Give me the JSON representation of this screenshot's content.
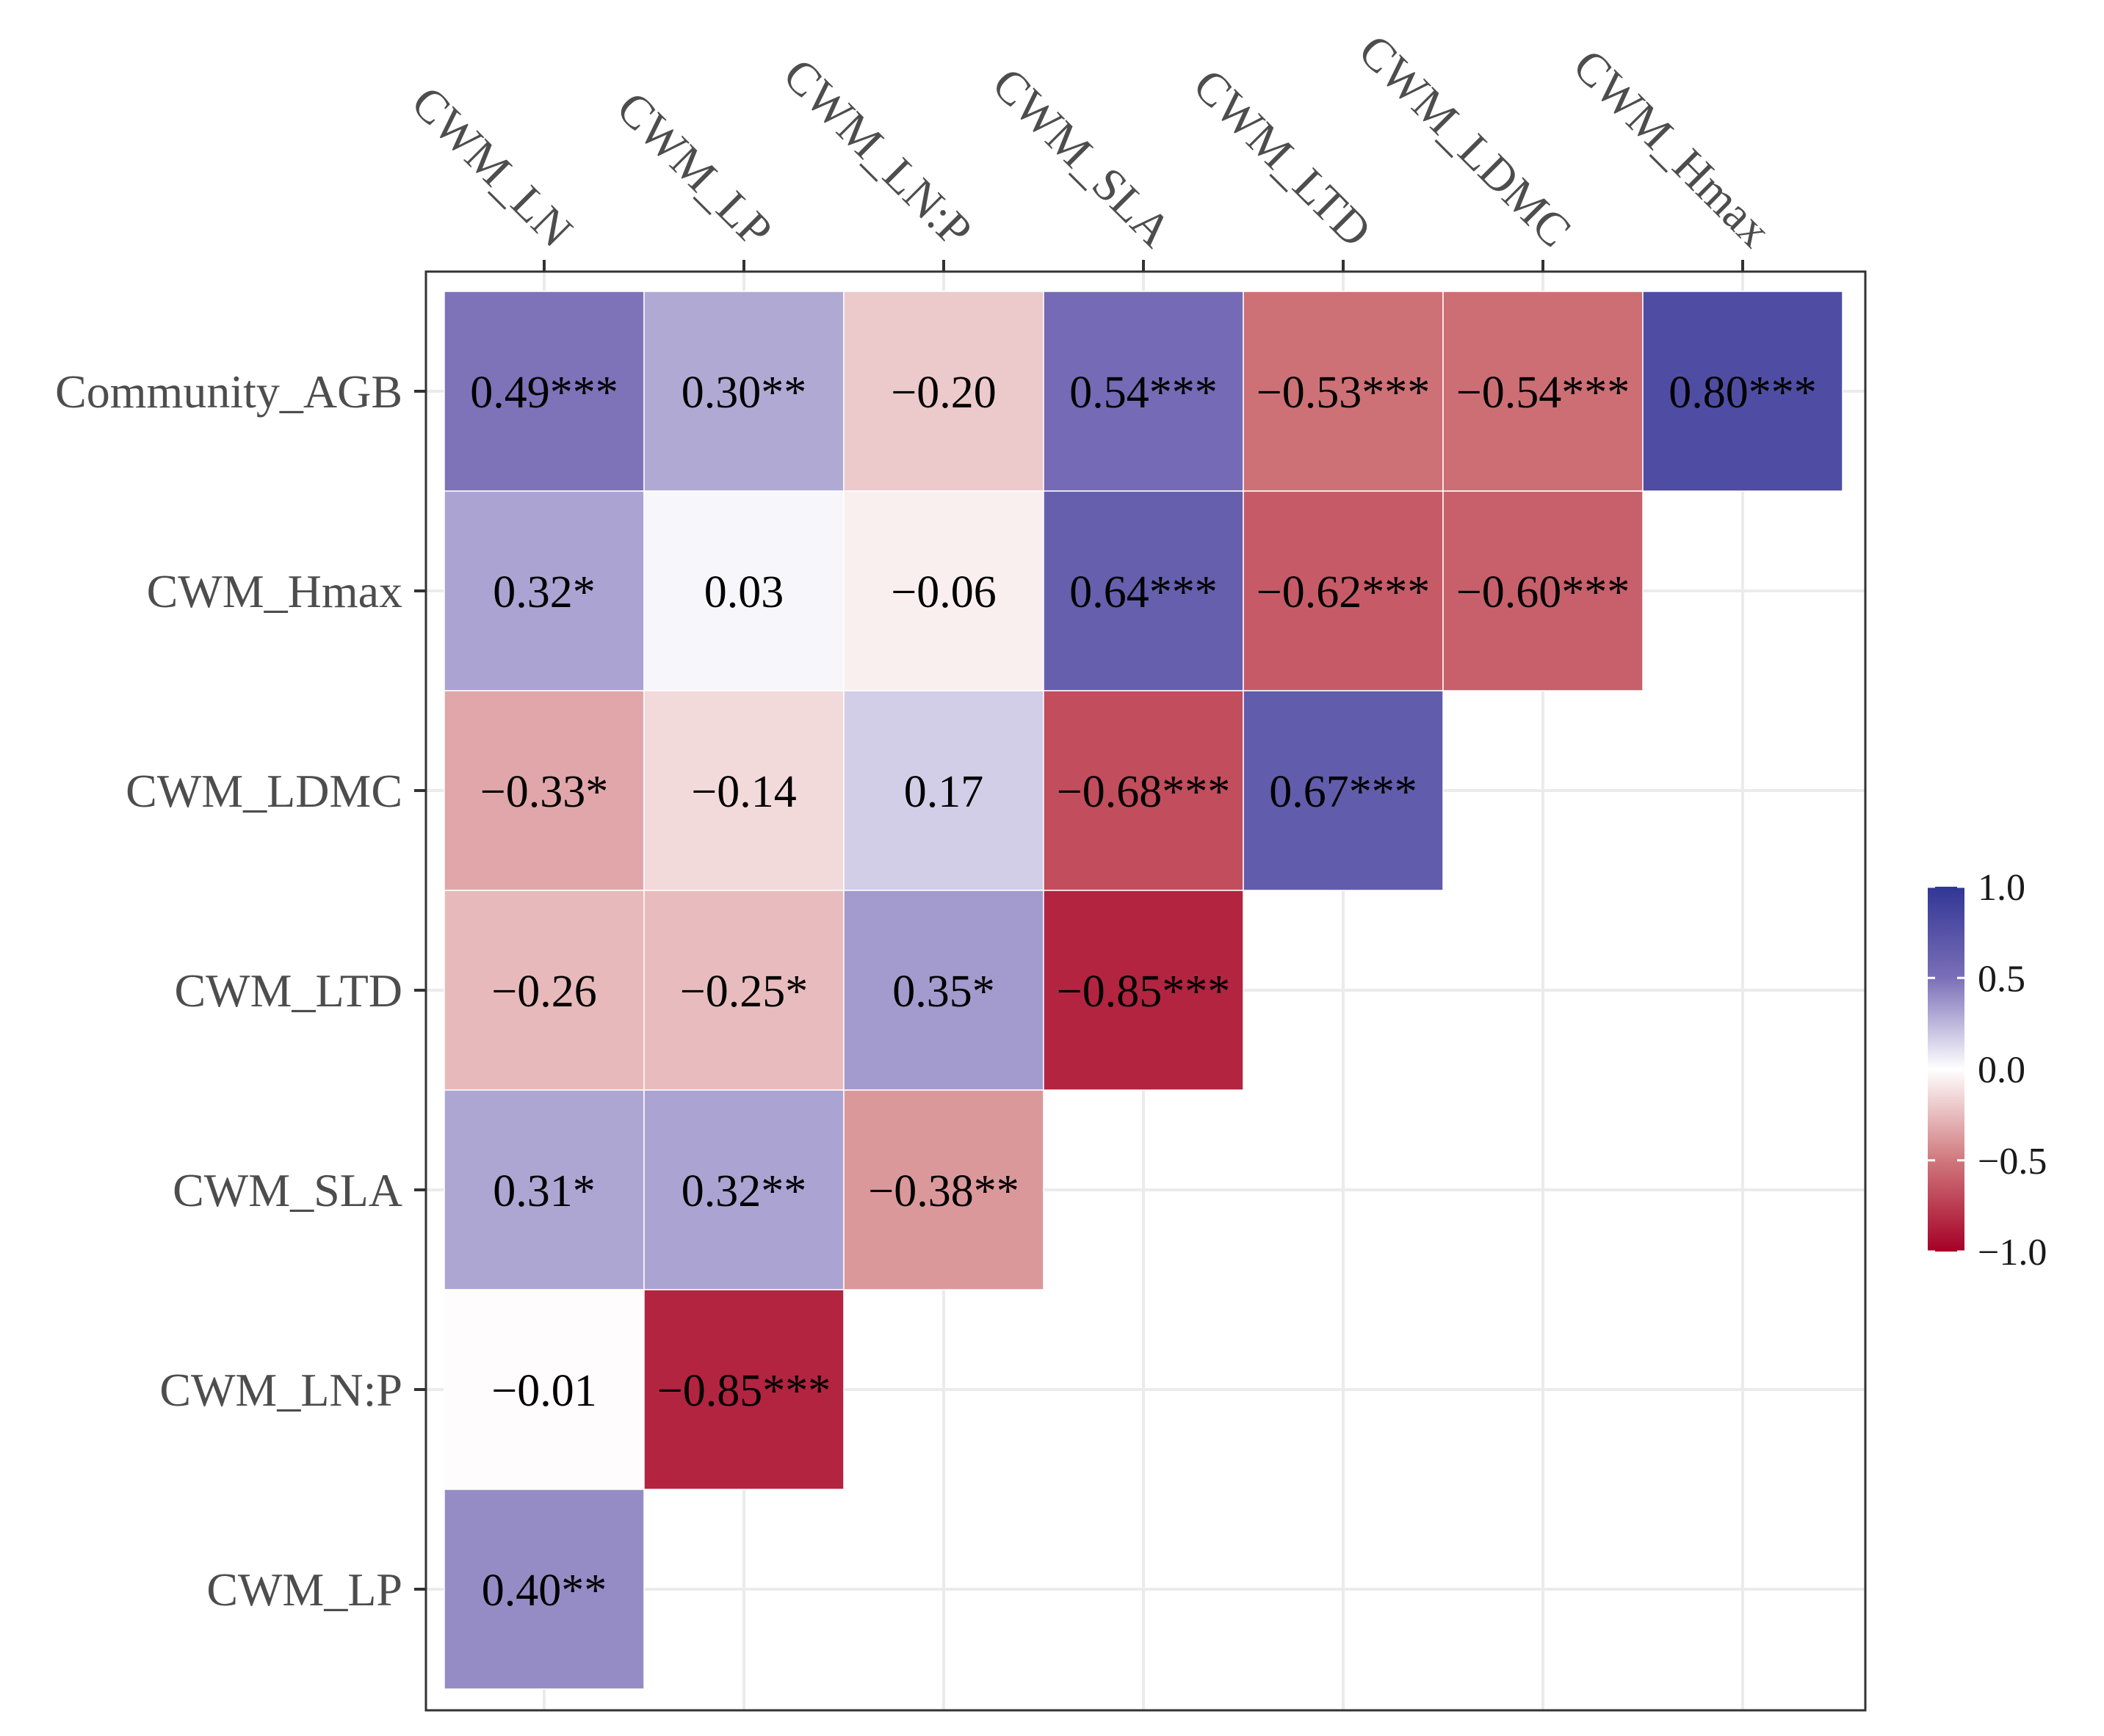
{
  "chart_data": {
    "type": "heatmap",
    "title": "",
    "x_labels": [
      "CWM_LN",
      "CWM_LP",
      "CWM_LN:P",
      "CWM_SLA",
      "CWM_LTD",
      "CWM_LDMC",
      "CWM_Hmax"
    ],
    "y_labels": [
      "Community_AGB",
      "CWM_Hmax",
      "CWM_LDMC",
      "CWM_LTD",
      "CWM_SLA",
      "CWM_LN:P",
      "CWM_LP"
    ],
    "cells": [
      [
        {
          "value": 0.49,
          "label": "0.49***"
        },
        {
          "value": 0.3,
          "label": "0.30**"
        },
        {
          "value": -0.2,
          "label": "−0.20"
        },
        {
          "value": 0.54,
          "label": "0.54***"
        },
        {
          "value": -0.53,
          "label": "−0.53***"
        },
        {
          "value": -0.54,
          "label": "−0.54***"
        },
        {
          "value": 0.8,
          "label": "0.80***"
        }
      ],
      [
        {
          "value": 0.32,
          "label": "0.32*"
        },
        {
          "value": 0.03,
          "label": "0.03"
        },
        {
          "value": -0.06,
          "label": "−0.06"
        },
        {
          "value": 0.64,
          "label": "0.64***"
        },
        {
          "value": -0.62,
          "label": "−0.62***"
        },
        {
          "value": -0.6,
          "label": "−0.60***"
        },
        null
      ],
      [
        {
          "value": -0.33,
          "label": "−0.33*"
        },
        {
          "value": -0.14,
          "label": "−0.14"
        },
        {
          "value": 0.17,
          "label": "0.17"
        },
        {
          "value": -0.68,
          "label": "−0.68***"
        },
        {
          "value": 0.67,
          "label": "0.67***"
        },
        null,
        null
      ],
      [
        {
          "value": -0.26,
          "label": "−0.26"
        },
        {
          "value": -0.25,
          "label": "−0.25*"
        },
        {
          "value": 0.35,
          "label": "0.35*"
        },
        {
          "value": -0.85,
          "label": "−0.85***"
        },
        null,
        null,
        null
      ],
      [
        {
          "value": 0.31,
          "label": "0.31*"
        },
        {
          "value": 0.32,
          "label": "0.32**"
        },
        {
          "value": -0.38,
          "label": "−0.38**"
        },
        null,
        null,
        null,
        null
      ],
      [
        {
          "value": -0.01,
          "label": "−0.01"
        },
        {
          "value": -0.85,
          "label": "−0.85***"
        },
        null,
        null,
        null,
        null,
        null
      ],
      [
        {
          "value": 0.4,
          "label": "0.40**"
        },
        null,
        null,
        null,
        null,
        null,
        null
      ]
    ],
    "color_scale": {
      "min": -1.0,
      "max": 1.0,
      "low_color": "#a50026",
      "mid_color": "#ffffff",
      "high_color": "#313695",
      "mid_low_color": "#d0787c",
      "mid_high_color": "#7b6fb8",
      "ticks": [
        1.0,
        0.5,
        0.0,
        -0.5,
        -1.0
      ],
      "tick_labels": [
        "1.0",
        "0.5",
        "0.0",
        "−0.5",
        "−1.0"
      ]
    },
    "grid": true,
    "legend_position": "right"
  }
}
